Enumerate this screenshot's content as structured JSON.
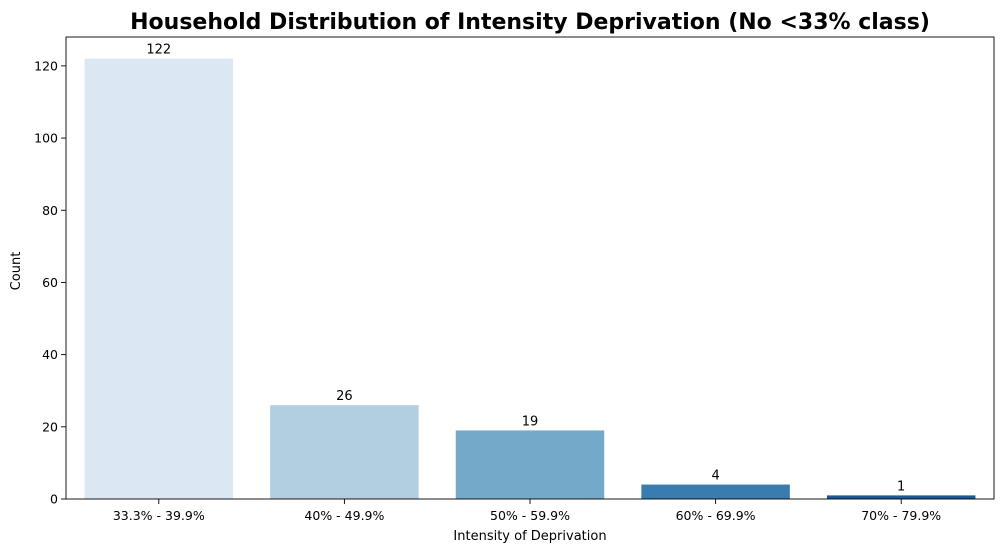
{
  "chart_data": {
    "type": "bar",
    "title": "Household Distribution of Intensity Deprivation (No <33% class)",
    "xlabel": "Intensity of Deprivation",
    "ylabel": "Count",
    "categories": [
      "33.3% - 39.9%",
      "40% - 49.9%",
      "50% - 59.9%",
      "60% - 69.9%",
      "70% - 79.9%"
    ],
    "values": [
      122,
      26,
      19,
      4,
      1
    ],
    "data_labels": [
      "122",
      "26",
      "19",
      "4",
      "1"
    ],
    "colors": [
      "#dbe7f3",
      "#b2cee1",
      "#75a9c9",
      "#3a7bb0",
      "#1f5895"
    ],
    "ylim": [
      0,
      128
    ],
    "yticks": [
      0,
      20,
      40,
      60,
      80,
      100,
      120
    ],
    "grid": false,
    "legend": "none"
  }
}
